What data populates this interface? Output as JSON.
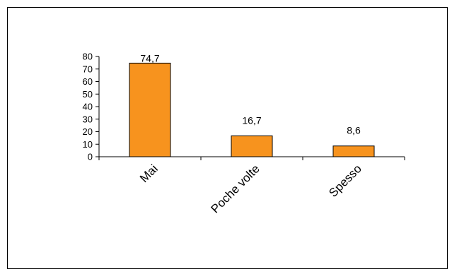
{
  "chart_data": {
    "type": "bar",
    "title": "",
    "xlabel": "",
    "ylabel": "",
    "categories": [
      "Mai",
      "Poche volte",
      "Spesso"
    ],
    "values": [
      74.7,
      16.7,
      8.6
    ],
    "value_labels": [
      "74,7",
      "16,7",
      "8,6"
    ],
    "ylim": [
      0,
      80
    ],
    "yticks": [
      "0",
      "10",
      "20",
      "30",
      "40",
      "50",
      "60",
      "70",
      "80"
    ],
    "grid": false,
    "legend": "none",
    "bar_color": "#F7931E",
    "bar_edge_color": "#000000"
  }
}
